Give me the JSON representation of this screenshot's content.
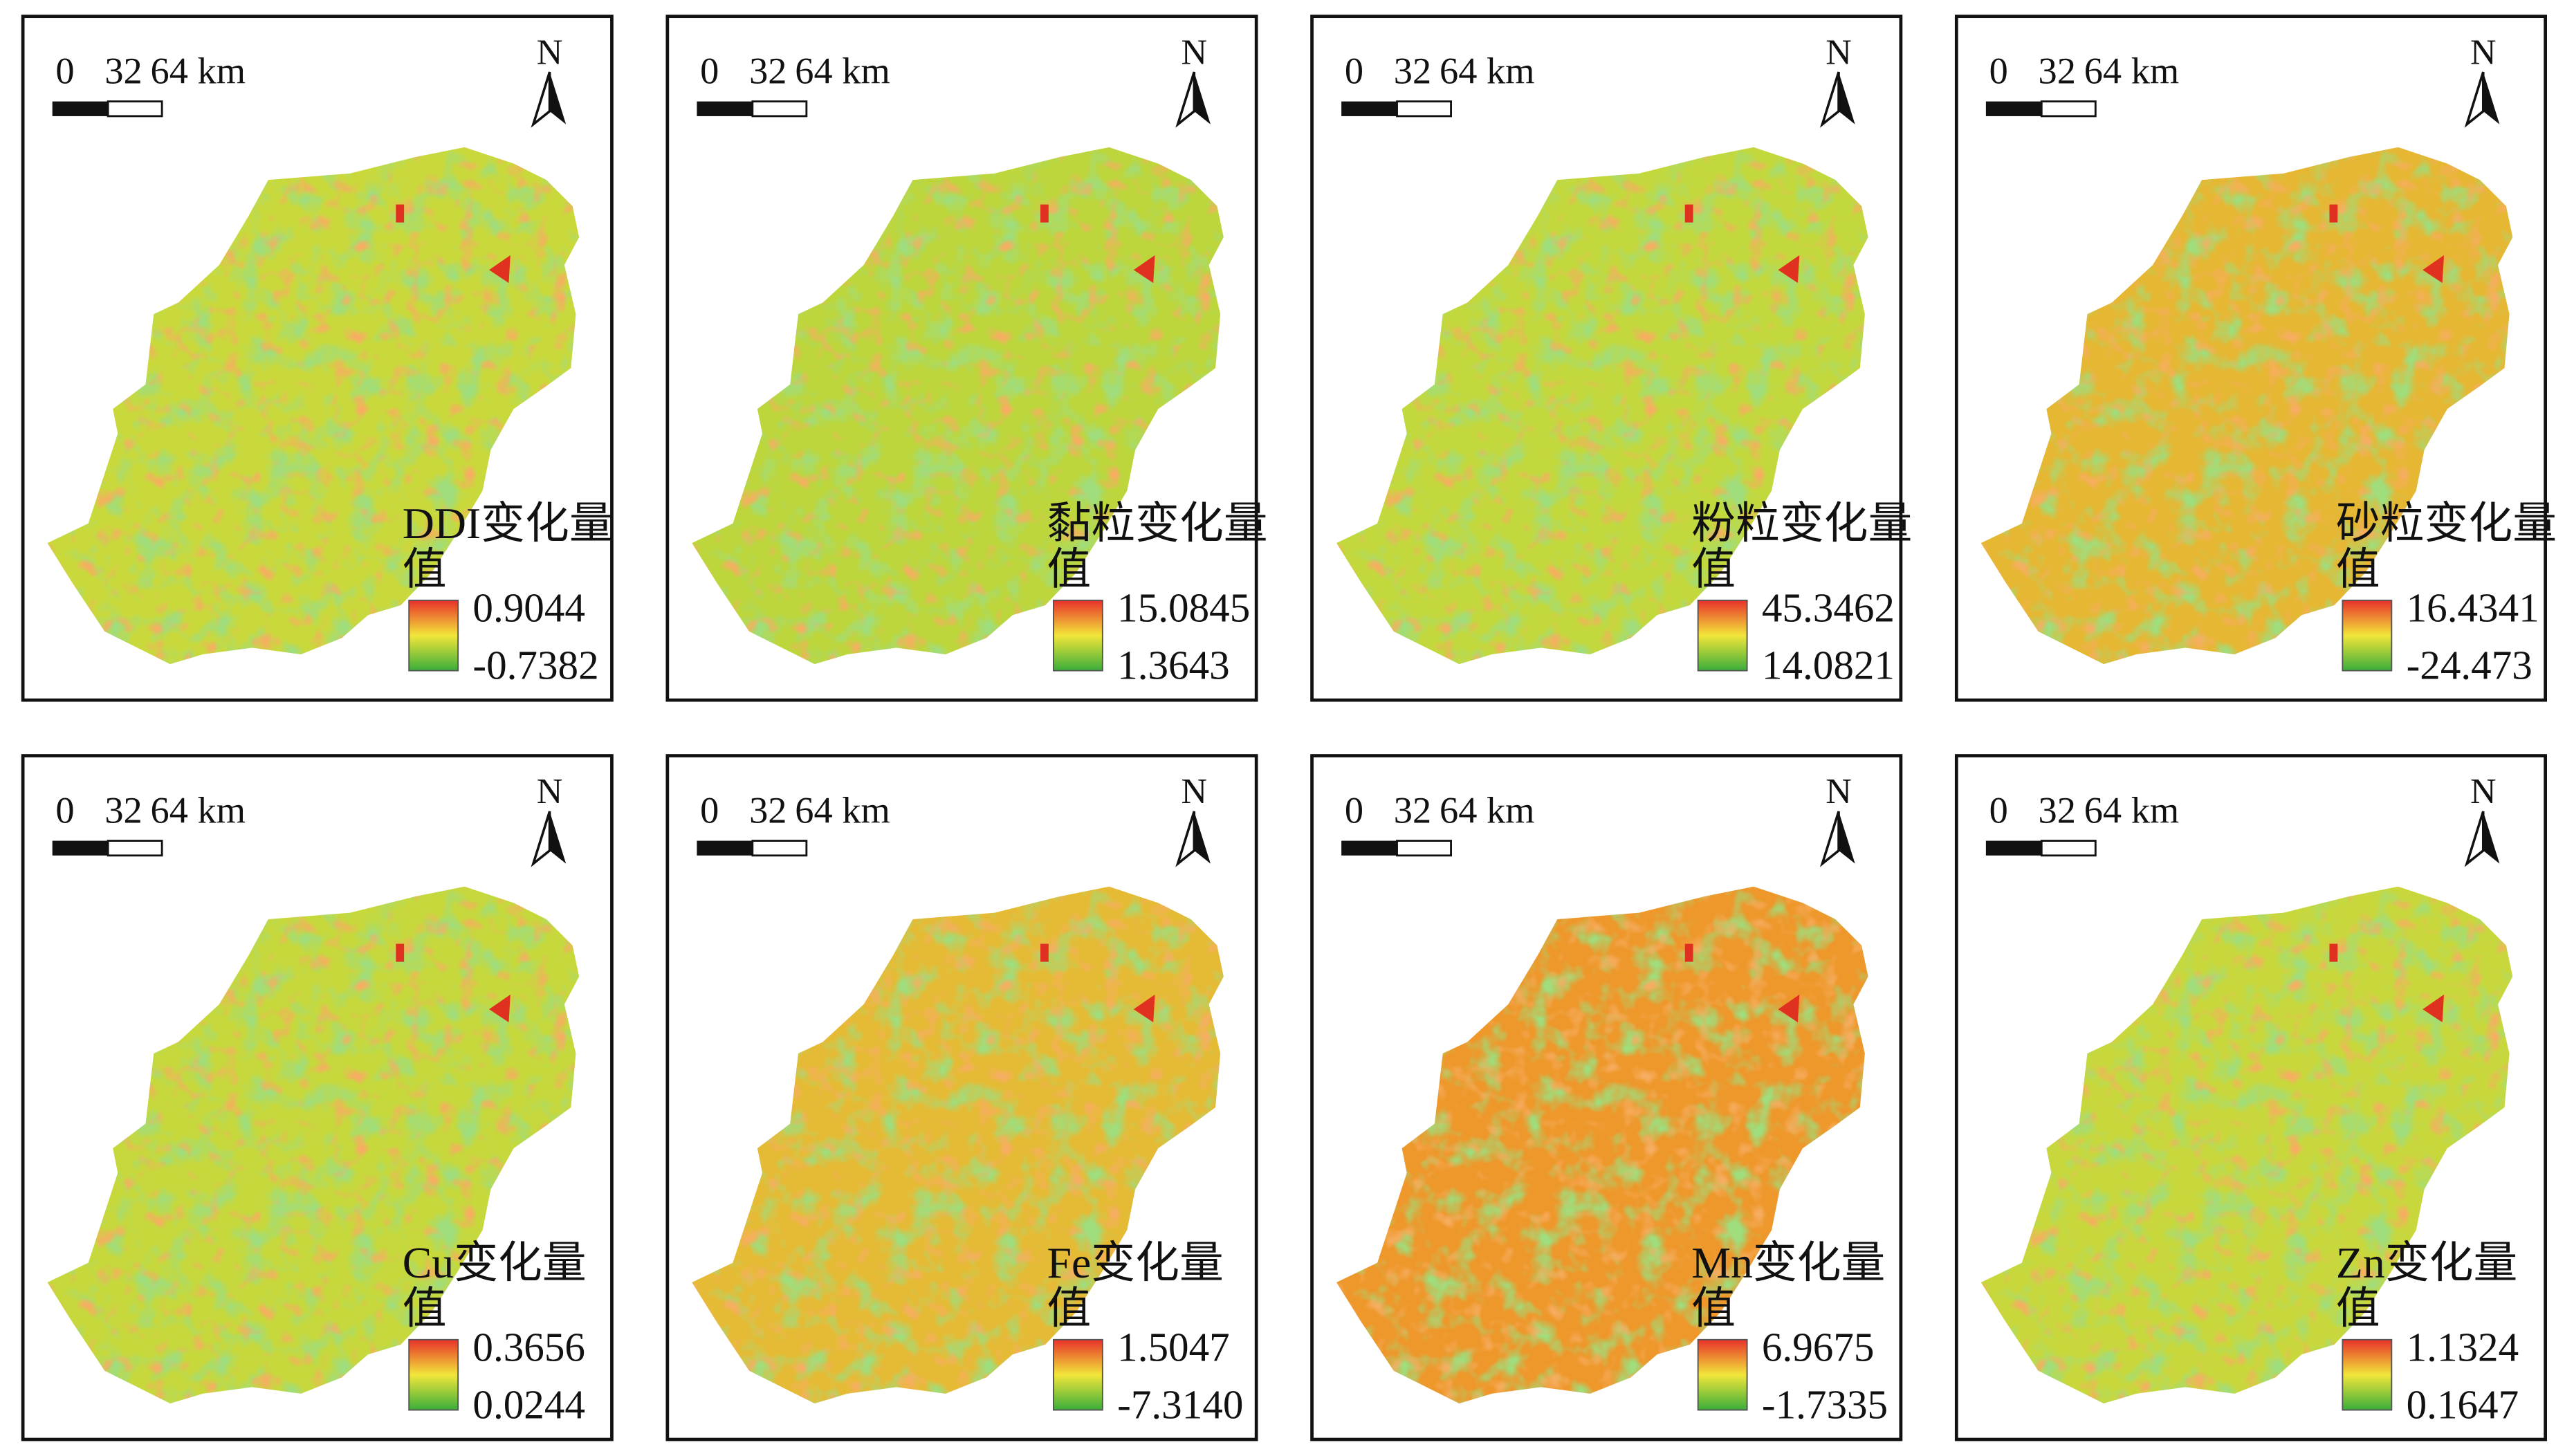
{
  "scale_bar": {
    "labels": [
      "0",
      "32",
      "64 km"
    ]
  },
  "north": "N",
  "panels": [
    {
      "title_lines": [
        "DDI变化量",
        "值"
      ],
      "legend_max": "0.9044",
      "legend_min": "-0.7382",
      "color": "#c9d93c"
    },
    {
      "title_lines": [
        "黏粒变化量",
        "值"
      ],
      "legend_max": "15.0845",
      "legend_min": "1.3643",
      "color": "#bdd63c"
    },
    {
      "title_lines": [
        "粉粒变化量",
        "值"
      ],
      "legend_max": "45.3462",
      "legend_min": "14.0821",
      "color": "#c3d83c"
    },
    {
      "title_lines": [
        "砂粒变化量",
        "值"
      ],
      "legend_max": "16.4341",
      "legend_min": "-24.473",
      "color": "#e6b733"
    },
    {
      "title_lines": [
        "Cu变化量",
        "值"
      ],
      "legend_max": "0.3656",
      "legend_min": "0.0244",
      "color": "#c6d83c"
    },
    {
      "title_lines": [
        "Fe变化量",
        "值"
      ],
      "legend_max": "1.5047",
      "legend_min": "-7.3140",
      "color": "#e5bb36"
    },
    {
      "title_lines": [
        "Mn变化量",
        "值"
      ],
      "legend_max": "6.9675",
      "legend_min": "-1.7335",
      "color": "#ee982b"
    },
    {
      "title_lines": [
        "Zn变化量",
        "值"
      ],
      "legend_max": "1.1324",
      "legend_min": "0.1647",
      "color": "#c8d83c"
    }
  ]
}
